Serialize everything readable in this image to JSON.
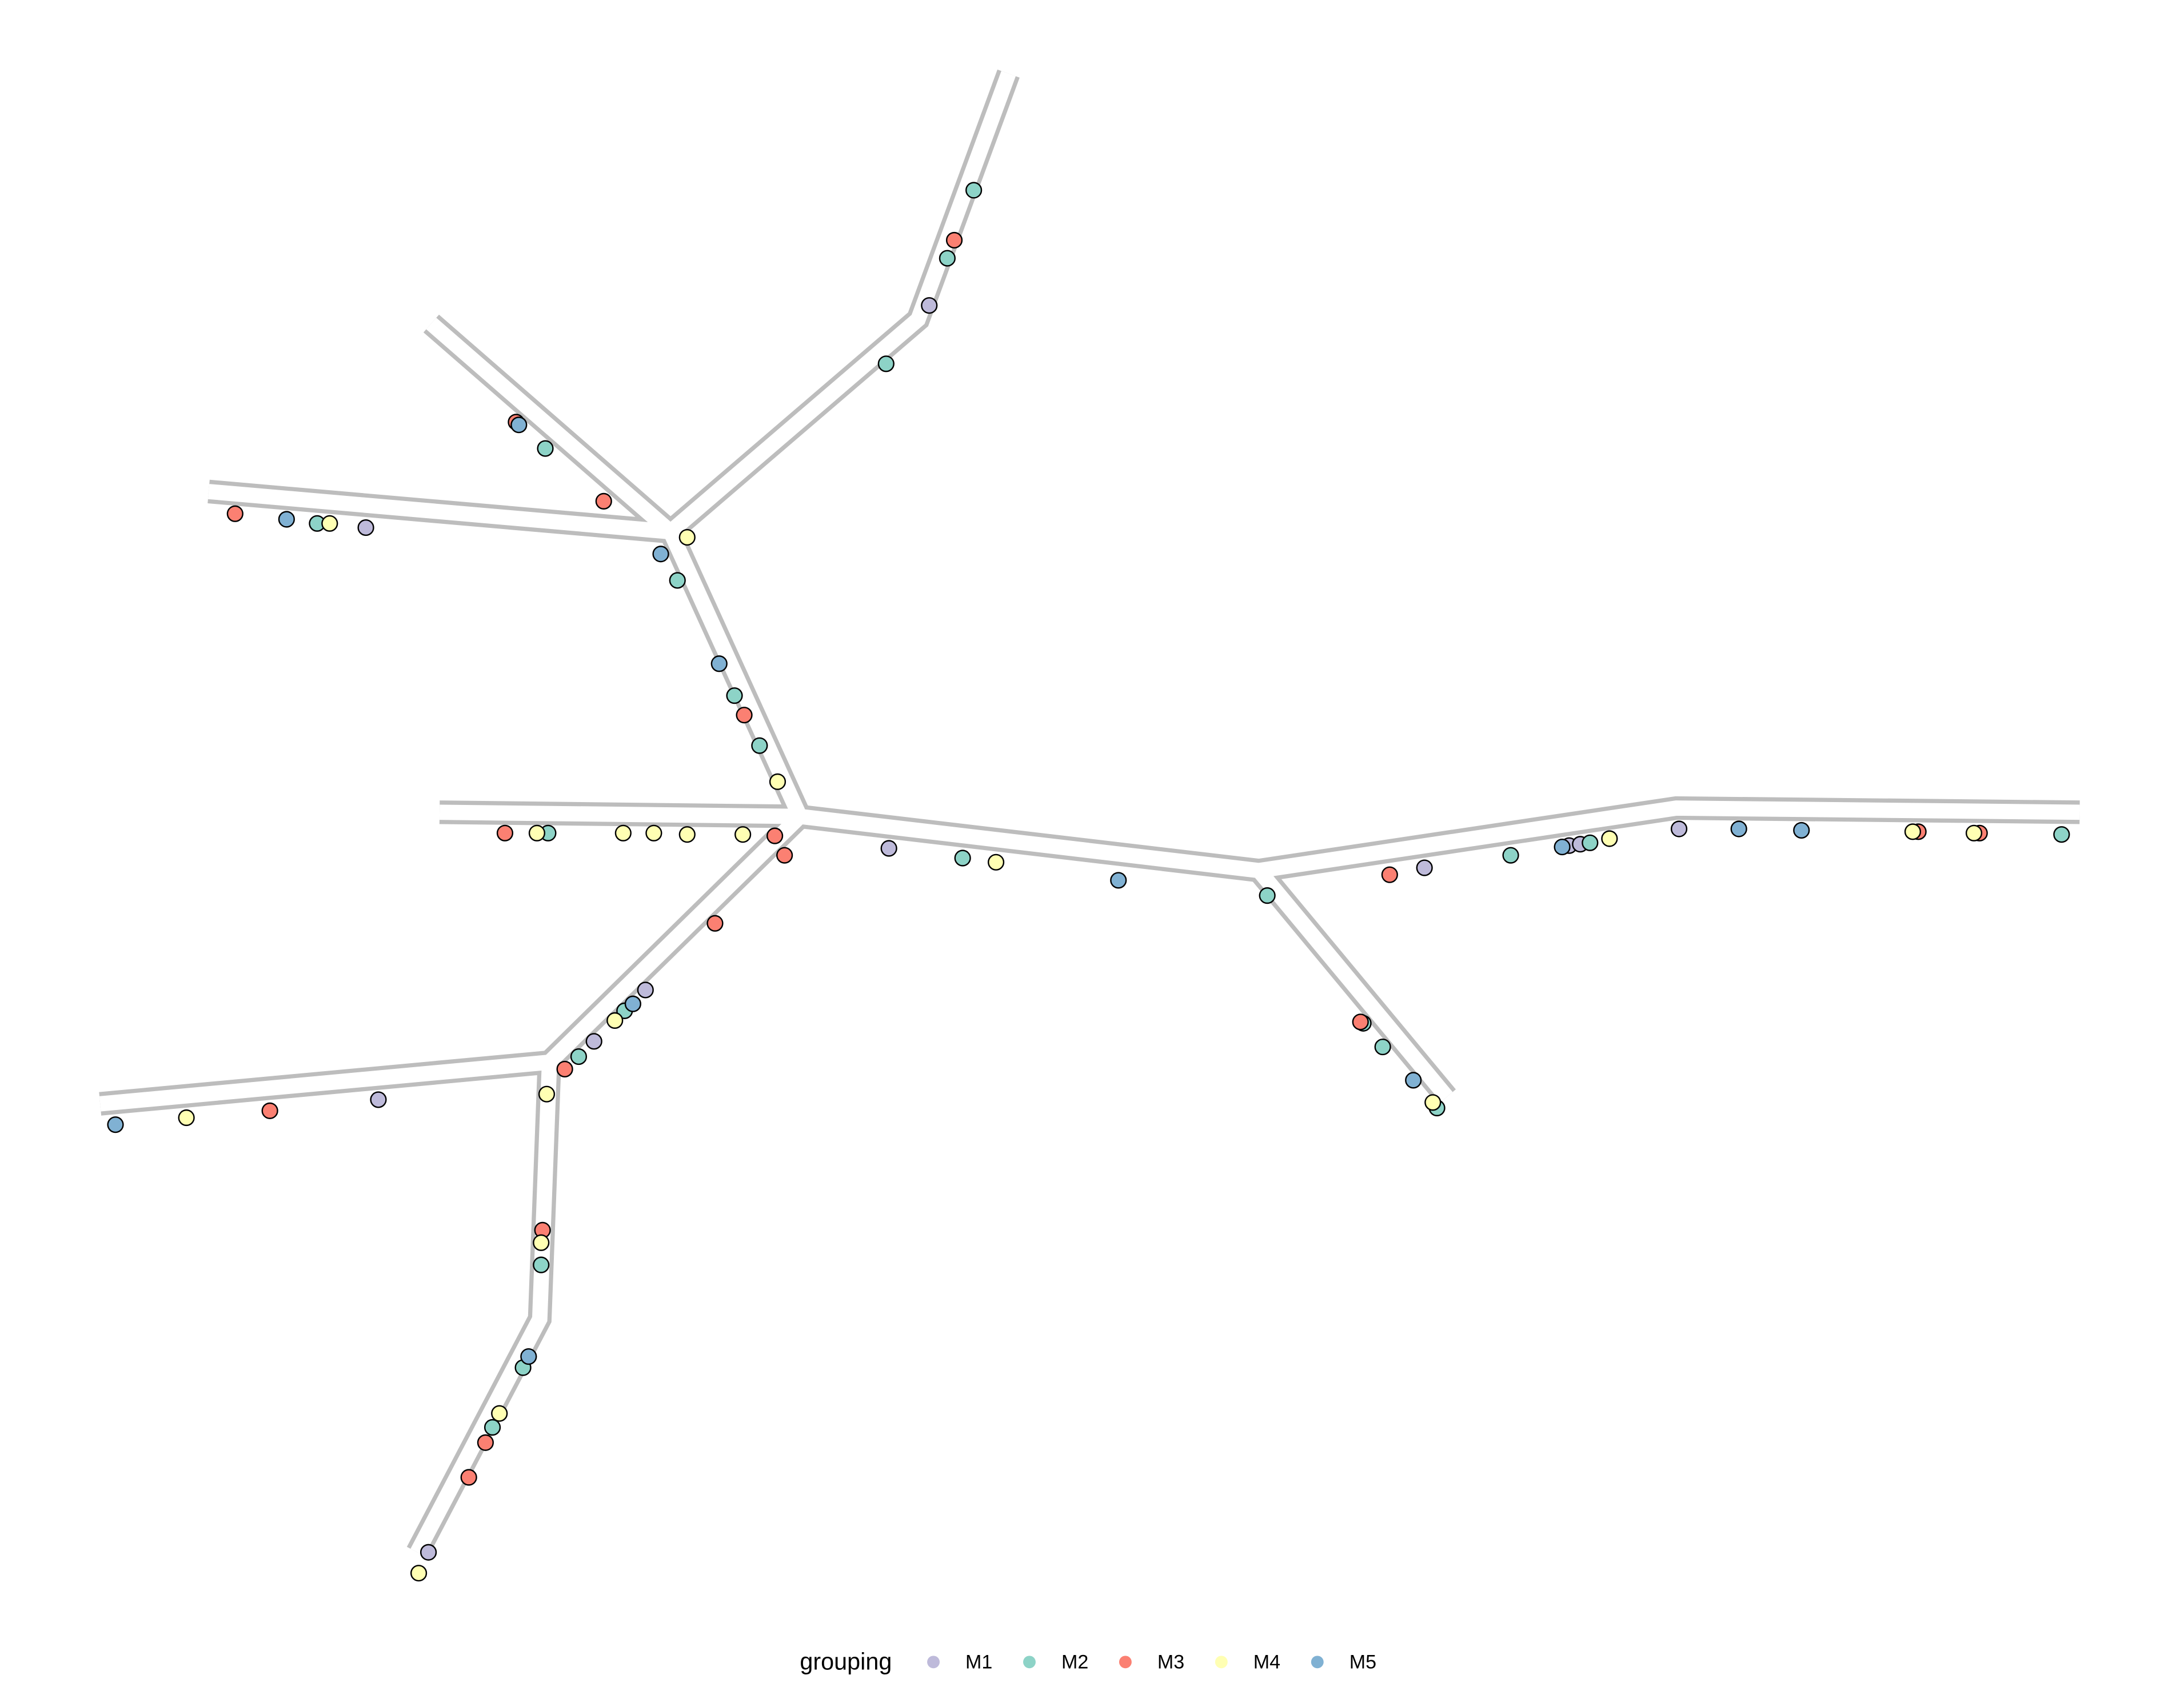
{
  "chart_data": {
    "type": "scatter",
    "legend_title": "grouping",
    "legend": "bottom",
    "xlim": [
      0,
      157
    ],
    "ylim": [
      0,
      121.5
    ],
    "series": [
      {
        "name": "M1",
        "color": "#bebada",
        "x": [
          66.8,
          26.3,
          46.4,
          42.7,
          27.2,
          63.9,
          102.4,
          112.8,
          120.7,
          30.8,
          113.6
        ],
        "y": [
          99.5,
          83.5,
          50.2,
          46.5,
          42.3,
          60.4,
          59,
          60.6,
          61.8,
          9.7,
          60.7
        ]
      },
      {
        "name": "M2",
        "color": "#8dd3c7",
        "x": [
          70,
          68.1,
          63.7,
          39.2,
          22.8,
          48.7,
          52.8,
          54.6,
          39.4,
          69.2,
          91.1,
          108.6,
          114.3,
          148.2,
          98,
          99.4,
          103.3,
          41.6,
          44.9,
          38.9,
          37.6,
          35.4
        ],
        "y": [
          107.8,
          102.9,
          95.3,
          89.2,
          83.8,
          79.7,
          71.4,
          67.8,
          61.5,
          59.7,
          57,
          59.9,
          60.8,
          61.4,
          47.8,
          46.1,
          41.7,
          45.4,
          48.7,
          30.4,
          23,
          18.7
        ]
      },
      {
        "name": "M3",
        "color": "#fb8072",
        "x": [
          68.6,
          37.1,
          43.4,
          16.9,
          53.5,
          36.3,
          55.7,
          56.4,
          51.4,
          40.6,
          19.4,
          39,
          34.9,
          33.7,
          99.9,
          137.9,
          142.3,
          97.8
        ],
        "y": [
          104.2,
          91.1,
          85.4,
          84.5,
          70,
          61.5,
          61.3,
          59.9,
          55,
          44.5,
          41.5,
          32.9,
          17.6,
          15.1,
          58.5,
          61.6,
          61.5,
          47.9
        ]
      },
      {
        "name": "M4",
        "color": "#ffffb3",
        "x": [
          49.4,
          23.7,
          55.9,
          38.6,
          44.8,
          47,
          49.4,
          53.4,
          71.6,
          115.7,
          137.5,
          141.9,
          44.2,
          39.3,
          13.4,
          38.9,
          35.9,
          30.1,
          103
        ],
        "y": [
          82.8,
          83.8,
          65.2,
          61.5,
          61.5,
          61.5,
          61.4,
          61.4,
          59.4,
          61.1,
          61.6,
          61.5,
          48,
          42.7,
          41,
          32,
          19.7,
          8.2,
          42.1
        ]
      },
      {
        "name": "M5",
        "color": "#80b1d3",
        "x": [
          47.5,
          20.6,
          51.7,
          80.4,
          112.3,
          125,
          129.5,
          45.5,
          8.3,
          101.6,
          38,
          37.3
        ],
        "y": [
          81.6,
          84.1,
          73.7,
          58.1,
          60.5,
          61.8,
          61.7,
          49.2,
          40.5,
          43.7,
          23.8,
          90.9
        ]
      }
    ]
  }
}
